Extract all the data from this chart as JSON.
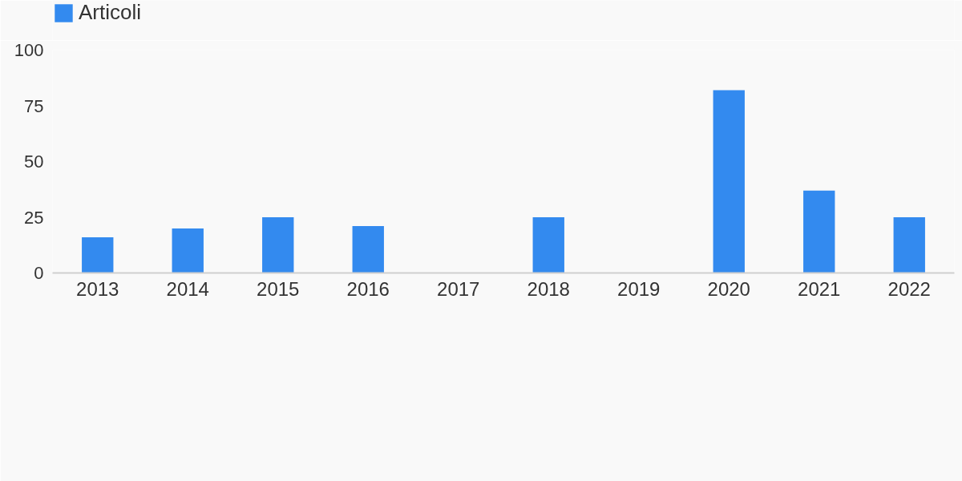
{
  "chart_data": {
    "type": "bar",
    "categories": [
      "2013",
      "2014",
      "2015",
      "2016",
      "2017",
      "2018",
      "2019",
      "2020",
      "2021",
      "2022"
    ],
    "series": [
      {
        "name": "Articoli",
        "color": "#338aef",
        "values": [
          16,
          20,
          25,
          21,
          0,
          25,
          0,
          82,
          37,
          25
        ]
      }
    ],
    "ylim": [
      0,
      100
    ],
    "yticks": [
      0,
      25,
      50,
      75,
      100
    ],
    "grid": false,
    "legend": "top left"
  }
}
